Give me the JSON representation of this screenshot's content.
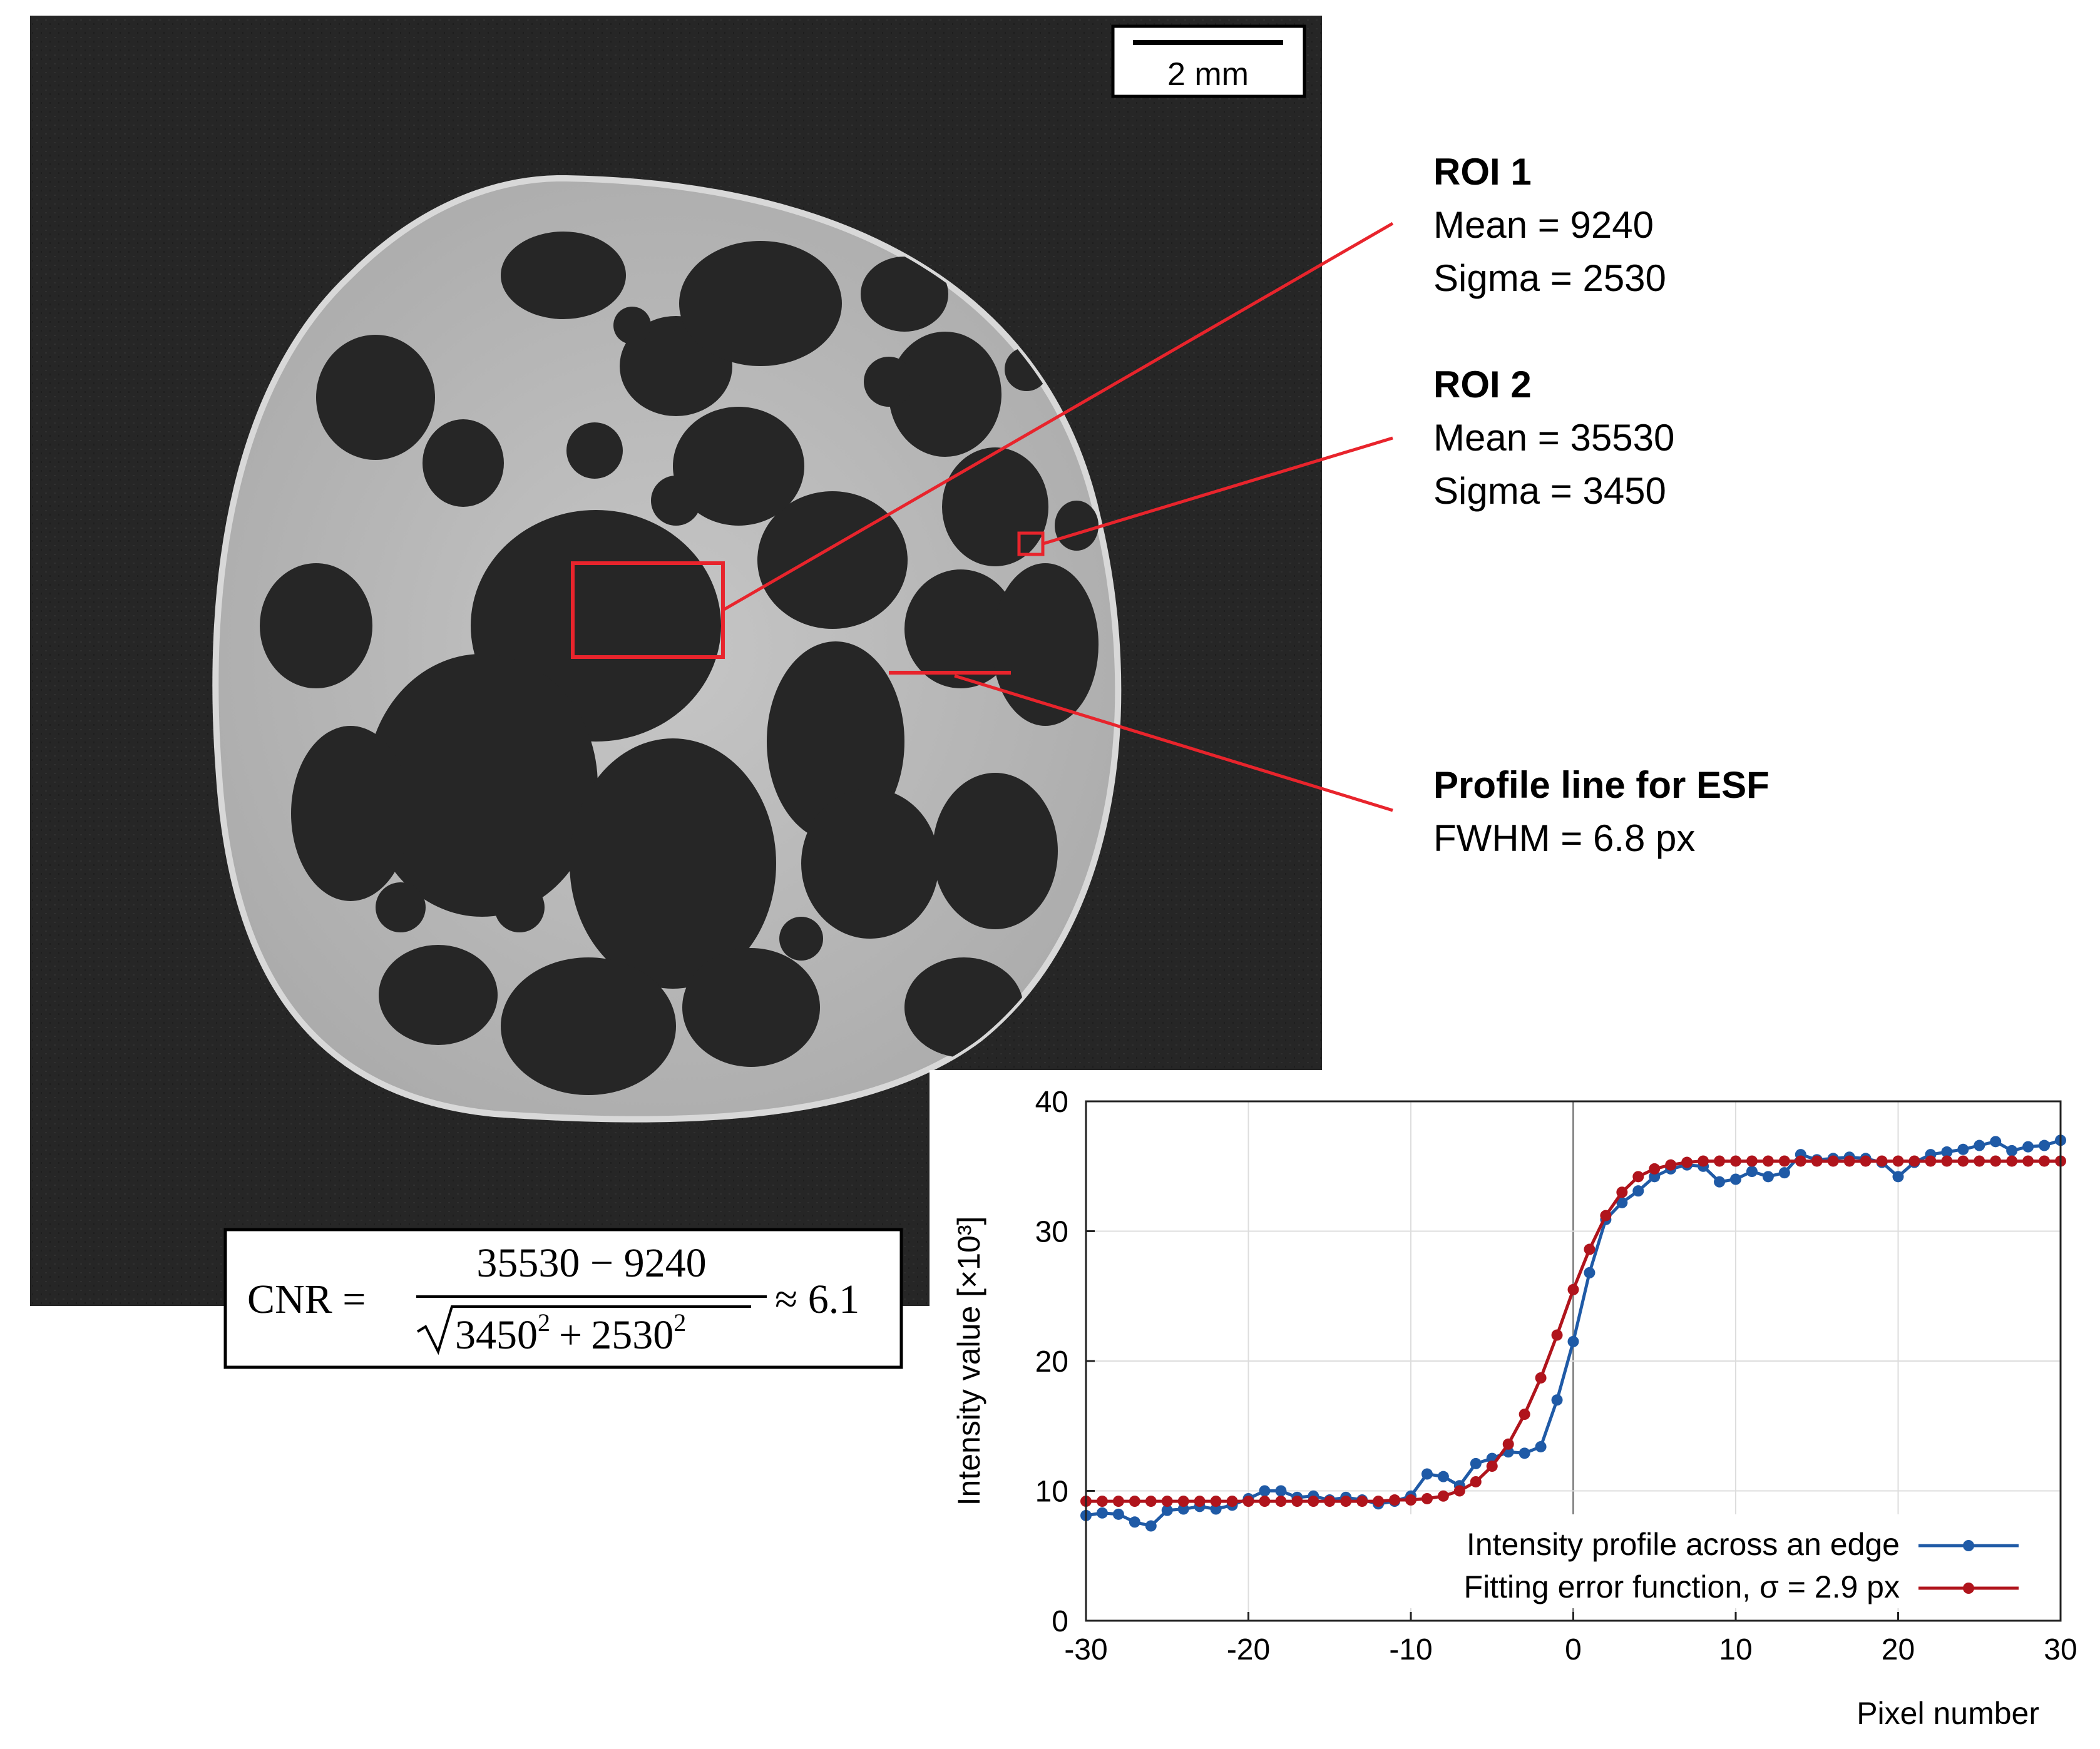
{
  "scale_bar": {
    "label": "2 mm"
  },
  "annotations": {
    "roi1": {
      "title": "ROI 1",
      "mean": "Mean = 9240",
      "sigma": "Sigma = 2530"
    },
    "roi2": {
      "title": "ROI 2",
      "mean": "Mean = 35530",
      "sigma": "Sigma = 3450"
    },
    "profile": {
      "title": "Profile line for ESF",
      "fwhm": "FWHM = 6.8 px"
    }
  },
  "formula": {
    "lhs": "CNR =",
    "numerator": "35530 − 9240",
    "den_a": "3450",
    "den_b": "2530",
    "exp": "2",
    "plus": "+",
    "result": "≈ 6.1"
  },
  "colors": {
    "annotation": "#e8242c",
    "series_blue": "#1f5aa6",
    "series_red": "#b0141c"
  },
  "chart_data": {
    "type": "line",
    "xlabel": "Pixel number",
    "ylabel": "Intensity value [×10³]",
    "xlim": [
      -30,
      30
    ],
    "ylim": [
      0,
      40
    ],
    "xticks": [
      "-30",
      "-20",
      "-10",
      "0",
      "10",
      "20",
      "30"
    ],
    "yticks": [
      "0",
      "10",
      "20",
      "30",
      "40"
    ],
    "grid": true,
    "legend_position": "bottom-right",
    "series": [
      {
        "name": "Intensity profile across an edge",
        "color": "#1f5aa6",
        "x": [
          -30,
          -29,
          -28,
          -27,
          -26,
          -25,
          -24,
          -23,
          -22,
          -21,
          -20,
          -19,
          -18,
          -17,
          -16,
          -15,
          -14,
          -13,
          -12,
          -11,
          -10,
          -9,
          -8,
          -7,
          -6,
          -5,
          -4,
          -3,
          -2,
          -1,
          0,
          1,
          2,
          3,
          4,
          5,
          6,
          7,
          8,
          9,
          10,
          11,
          12,
          13,
          14,
          15,
          16,
          17,
          18,
          19,
          20,
          21,
          22,
          23,
          24,
          25,
          26,
          27,
          28,
          29,
          30
        ],
        "y": [
          8.1,
          8.3,
          8.2,
          7.6,
          7.3,
          8.5,
          8.6,
          8.8,
          8.6,
          8.9,
          9.4,
          10.0,
          10.0,
          9.5,
          9.6,
          9.3,
          9.5,
          9.3,
          9.0,
          9.2,
          9.6,
          11.3,
          11.1,
          10.4,
          12.1,
          12.5,
          13.0,
          12.9,
          13.4,
          17.0,
          21.5,
          26.8,
          30.9,
          32.2,
          33.1,
          34.2,
          34.8,
          35.1,
          35.0,
          33.8,
          34.0,
          34.6,
          34.2,
          34.5,
          35.9,
          35.5,
          35.6,
          35.7,
          35.6,
          35.3,
          34.2,
          35.3,
          35.9,
          36.1,
          36.3,
          36.6,
          36.9,
          36.2,
          36.5,
          36.6,
          37.0
        ]
      },
      {
        "name": "Fitting error function, σ = 2.9 px",
        "color": "#b0141c",
        "x": [
          -30,
          -29,
          -28,
          -27,
          -26,
          -25,
          -24,
          -23,
          -22,
          -21,
          -20,
          -19,
          -18,
          -17,
          -16,
          -15,
          -14,
          -13,
          -12,
          -11,
          -10,
          -9,
          -8,
          -7,
          -6,
          -5,
          -4,
          -3,
          -2,
          -1,
          0,
          1,
          2,
          3,
          4,
          5,
          6,
          7,
          8,
          9,
          10,
          11,
          12,
          13,
          14,
          15,
          16,
          17,
          18,
          19,
          20,
          21,
          22,
          23,
          24,
          25,
          26,
          27,
          28,
          29,
          30
        ],
        "y": [
          9.2,
          9.2,
          9.2,
          9.2,
          9.2,
          9.2,
          9.2,
          9.2,
          9.2,
          9.2,
          9.2,
          9.2,
          9.2,
          9.2,
          9.2,
          9.2,
          9.2,
          9.2,
          9.2,
          9.3,
          9.3,
          9.4,
          9.6,
          10.0,
          10.7,
          11.9,
          13.6,
          15.9,
          18.7,
          22.0,
          25.5,
          28.6,
          31.2,
          33.0,
          34.2,
          34.8,
          35.1,
          35.3,
          35.4,
          35.4,
          35.4,
          35.4,
          35.4,
          35.4,
          35.4,
          35.4,
          35.4,
          35.4,
          35.4,
          35.4,
          35.4,
          35.4,
          35.4,
          35.4,
          35.4,
          35.4,
          35.4,
          35.4,
          35.4,
          35.4,
          35.4
        ]
      }
    ]
  }
}
